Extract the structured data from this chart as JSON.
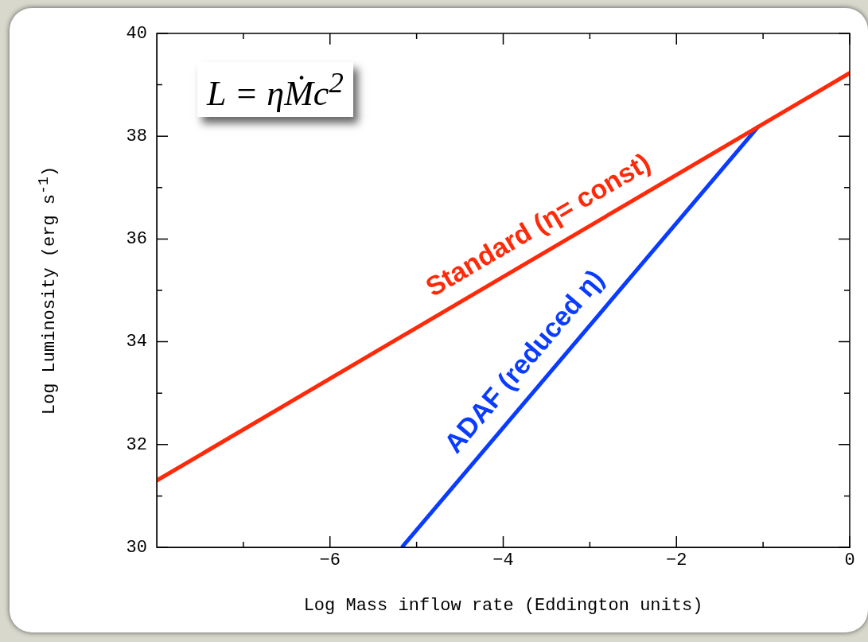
{
  "chart_data": {
    "type": "line",
    "xlabel": "Log Mass inflow rate (Eddington units)",
    "ylabel": "Log Luminosity (erg s$^{-1}$)",
    "xlim": [
      -8,
      0
    ],
    "ylim": [
      30,
      40
    ],
    "xticks": [
      {
        "value": -7,
        "label": null
      },
      -6,
      {
        "value": -5,
        "label": null
      },
      -4,
      {
        "value": -3,
        "label": null
      },
      -2,
      {
        "value": -1,
        "label": null
      },
      0
    ],
    "yticks": [
      30,
      {
        "value": 31,
        "label": null
      },
      32,
      {
        "value": 33,
        "label": null
      },
      34,
      {
        "value": 35,
        "label": null
      },
      36,
      {
        "value": 37,
        "label": null
      },
      38,
      {
        "value": 39,
        "label": null
      },
      40
    ],
    "grid": false,
    "legend": false,
    "marker": "none",
    "line_style": "solid",
    "annotations": [
      "L = ηṀc$^{2}$"
    ],
    "series": [
      {
        "name": "Standard (η= const)",
        "color": "#ff2a0a",
        "x": [
          -8,
          0
        ],
        "values": [
          31.3,
          39.23
        ]
      },
      {
        "name": "ADAF (reduced η)",
        "color": "#0a3cff",
        "x": [
          -5.17,
          -1.05
        ],
        "values": [
          30,
          38.2
        ]
      }
    ]
  }
}
